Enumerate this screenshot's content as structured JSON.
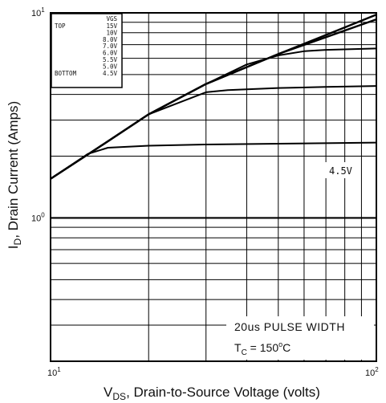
{
  "chart_data": {
    "type": "line",
    "scale": "log-log",
    "x_axis": {
      "label_main": "V",
      "label_sub": "DS",
      "label_rest": ", Drain-to-Source Voltage (volts)",
      "range": [
        10,
        100
      ],
      "ticks": [
        {
          "value": 10,
          "base": "10",
          "exp": "1"
        },
        {
          "value": 100,
          "base": "10",
          "exp": "2"
        }
      ]
    },
    "y_axis": {
      "label_main": "I",
      "label_sub": "D",
      "label_rest": ", Drain Current (Amps)",
      "range": [
        0.2,
        10
      ],
      "ticks": [
        {
          "value": 10,
          "base": "10",
          "exp": "1"
        },
        {
          "value": 1,
          "base": "10",
          "exp": "0"
        }
      ]
    },
    "grid": true,
    "legend": {
      "position": "top-left",
      "header": "VGS",
      "top_label": "TOP",
      "bottom_label": "BOTTOM",
      "entries": [
        "15V",
        "10V",
        "8.0V",
        "7.0V",
        "6.0V",
        "5.5V",
        "5.0V",
        "4.5V"
      ]
    },
    "series": [
      {
        "x": [
          10,
          14,
          20,
          30,
          50,
          70,
          100
        ],
        "y": [
          1.55,
          2.2,
          3.2,
          4.5,
          6.3,
          7.8,
          9.8
        ]
      },
      {
        "x": [
          10,
          14,
          20,
          30,
          50,
          70,
          100
        ],
        "y": [
          1.55,
          2.2,
          3.2,
          4.5,
          6.3,
          7.6,
          9.3
        ]
      },
      {
        "x": [
          10,
          14,
          20,
          30,
          40,
          50,
          60,
          70,
          100
        ],
        "y": [
          1.55,
          2.2,
          3.2,
          4.5,
          5.6,
          6.2,
          6.5,
          6.6,
          6.7
        ]
      },
      {
        "x": [
          10,
          14,
          20,
          30,
          35,
          50,
          70,
          100
        ],
        "y": [
          1.55,
          2.2,
          3.2,
          4.1,
          4.2,
          4.3,
          4.35,
          4.4
        ]
      },
      {
        "x": [
          10,
          13,
          15,
          20,
          30,
          50,
          100
        ],
        "y": [
          1.55,
          2.05,
          2.2,
          2.25,
          2.28,
          2.3,
          2.33
        ]
      }
    ],
    "annotations": [
      {
        "text": "4.5V"
      },
      {
        "text": "20us PULSE WIDTH"
      },
      {
        "text_main": "T",
        "text_sub": "C",
        "text_rest": " = 150",
        "text_sup": "o",
        "text_end": "C"
      }
    ]
  }
}
